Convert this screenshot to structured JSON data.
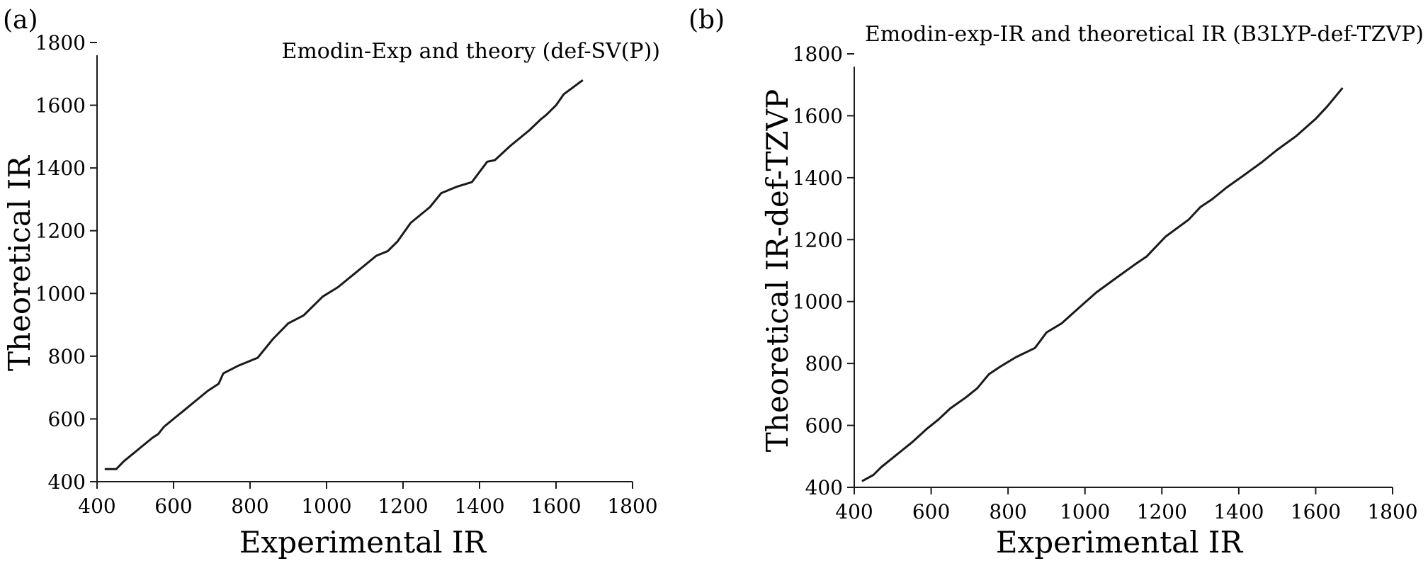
{
  "chart_data": [
    {
      "type": "line",
      "panel_label": "(a)",
      "title": "Emodin-Exp and theory (def-SV(P))",
      "xlabel": "Experimental IR",
      "ylabel": "Theoretical IR",
      "xlim": [
        400,
        1800
      ],
      "ylim": [
        400,
        1800
      ],
      "xticks": [
        "400",
        "600",
        "800",
        "1000",
        "1200",
        "1400",
        "1600",
        "1800"
      ],
      "yticks": [
        "400",
        "600",
        "800",
        "1000",
        "1200",
        "1400",
        "1600",
        "1800"
      ],
      "grid": false,
      "series": [
        {
          "x": [
            420,
            450,
            470,
            510,
            545,
            560,
            575,
            600,
            625,
            660,
            690,
            718,
            730,
            770,
            820,
            860,
            900,
            940,
            990,
            1030,
            1080,
            1130,
            1160,
            1185,
            1220,
            1270,
            1300,
            1340,
            1380,
            1420,
            1440,
            1480,
            1530,
            1560,
            1575,
            1600,
            1620,
            1670
          ],
          "y": [
            440,
            440,
            465,
            505,
            540,
            552,
            575,
            600,
            625,
            660,
            690,
            712,
            745,
            770,
            795,
            855,
            905,
            930,
            990,
            1020,
            1070,
            1120,
            1135,
            1165,
            1225,
            1275,
            1320,
            1340,
            1355,
            1420,
            1425,
            1470,
            1520,
            1555,
            1570,
            1600,
            1635,
            1680
          ]
        }
      ]
    },
    {
      "type": "line",
      "panel_label": "(b)",
      "title": "Emodin-exp-IR and theoretical IR (B3LYP-def-TZVP)",
      "xlabel": "Experimental IR",
      "ylabel": "Theoretical IR-def-TZVP",
      "xlim": [
        400,
        1800
      ],
      "ylim": [
        400,
        1800
      ],
      "xticks": [
        "400",
        "600",
        "800",
        "1000",
        "1200",
        "1400",
        "1600",
        "1800"
      ],
      "yticks": [
        "400",
        "600",
        "800",
        "1000",
        "1200",
        "1400",
        "1600",
        "1800"
      ],
      "grid": false,
      "series": [
        {
          "x": [
            420,
            450,
            470,
            510,
            550,
            590,
            620,
            650,
            690,
            720,
            750,
            780,
            820,
            870,
            900,
            940,
            980,
            1030,
            1080,
            1130,
            1160,
            1210,
            1270,
            1300,
            1330,
            1370,
            1410,
            1460,
            1500,
            1550,
            1600,
            1630,
            1670
          ],
          "y": [
            420,
            440,
            465,
            505,
            545,
            590,
            620,
            655,
            690,
            720,
            765,
            790,
            820,
            850,
            900,
            930,
            975,
            1030,
            1075,
            1120,
            1145,
            1210,
            1265,
            1305,
            1330,
            1370,
            1405,
            1450,
            1490,
            1535,
            1590,
            1630,
            1690
          ]
        }
      ]
    }
  ]
}
